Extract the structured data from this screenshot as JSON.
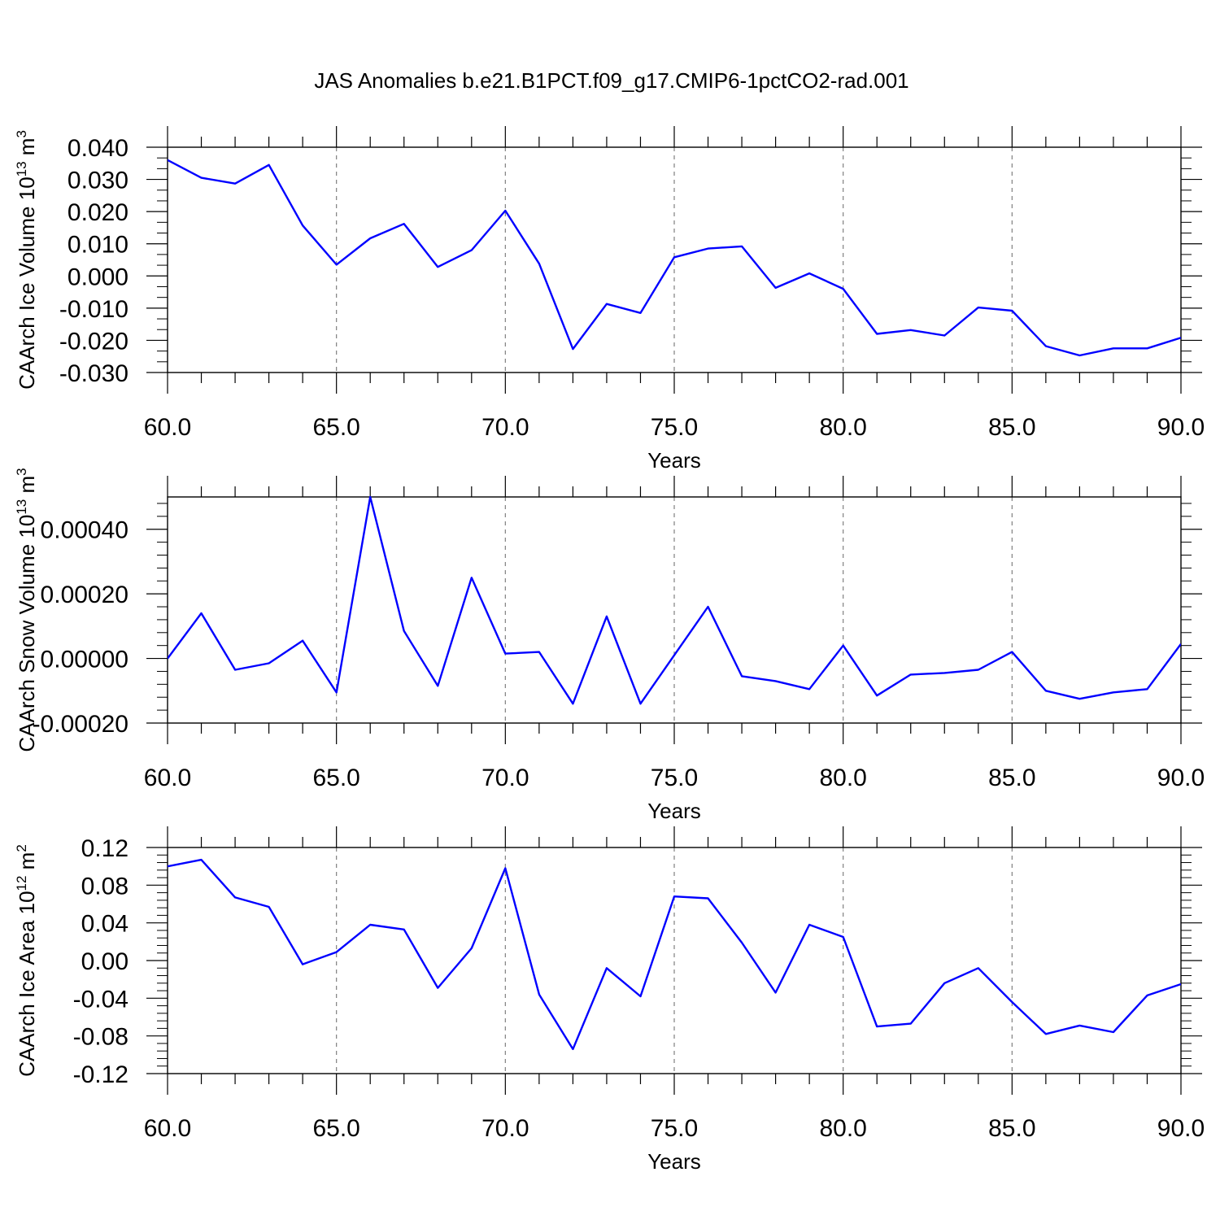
{
  "title": "JAS Anomalies b.e21.B1PCT.f09_g17.CMIP6-1pctCO2-rad.001",
  "colors": {
    "line": "#0000ff",
    "axis": "#000000",
    "grid": "#808080"
  },
  "chart_data": [
    {
      "type": "line",
      "xlabel": "Years",
      "ylabel": {
        "text": "CAArch Ice Volume 10",
        "sup": "13",
        "unit": " m",
        "unit_sup": "3"
      },
      "xlim": [
        60,
        90
      ],
      "ylim": [
        -0.03,
        0.04
      ],
      "x_ticks": [
        "60.0",
        "65.0",
        "70.0",
        "75.0",
        "80.0",
        "85.0",
        "90.0"
      ],
      "y_ticks": [
        "0.040",
        "0.030",
        "0.020",
        "0.010",
        "0.000",
        "-0.010",
        "-0.020",
        "-0.030"
      ],
      "y_tick_values": [
        0.04,
        0.03,
        0.02,
        0.01,
        0.0,
        -0.01,
        -0.02,
        -0.03
      ],
      "grid": "vertical-dashed",
      "x": [
        60,
        61,
        62,
        63,
        64,
        65,
        66,
        67,
        68,
        69,
        70,
        71,
        72,
        73,
        74,
        75,
        76,
        77,
        78,
        79,
        80,
        81,
        82,
        83,
        84,
        85,
        86,
        87,
        88,
        89,
        90
      ],
      "values": [
        0.036,
        0.0305,
        0.0287,
        0.0345,
        0.0157,
        0.0035,
        0.0117,
        0.0162,
        0.0028,
        0.008,
        0.0203,
        0.0038,
        -0.0227,
        -0.0087,
        -0.0115,
        0.0058,
        0.0085,
        0.0092,
        -0.0037,
        0.0008,
        -0.004,
        -0.018,
        -0.0168,
        -0.0185,
        -0.0098,
        -0.0108,
        -0.0218,
        -0.0247,
        -0.0225,
        -0.0225,
        -0.0192
      ]
    },
    {
      "type": "line",
      "xlabel": "Years",
      "ylabel": {
        "text": "CAArch Snow Volume 10",
        "sup": "13",
        "unit": " m",
        "unit_sup": "3"
      },
      "xlim": [
        60,
        90
      ],
      "ylim": [
        -0.0002,
        0.0005
      ],
      "x_ticks": [
        "60.0",
        "65.0",
        "70.0",
        "75.0",
        "80.0",
        "85.0",
        "90.0"
      ],
      "y_ticks": [
        "0.00040",
        "0.00020",
        "0.00000",
        "-0.00020"
      ],
      "y_tick_values": [
        0.0004,
        0.0002,
        0.0,
        -0.0002
      ],
      "grid": "vertical-dashed",
      "x": [
        60,
        61,
        62,
        63,
        64,
        65,
        66,
        67,
        68,
        69,
        70,
        71,
        72,
        73,
        74,
        75,
        76,
        77,
        78,
        79,
        80,
        81,
        82,
        83,
        84,
        85,
        86,
        87,
        88,
        89,
        90
      ],
      "values": [
        0.0,
        0.00014,
        -3.5e-05,
        -1.5e-05,
        5.5e-05,
        -0.000105,
        0.0005,
        8.5e-05,
        -8.5e-05,
        0.00025,
        1.5e-05,
        2e-05,
        -0.00014,
        0.00013,
        -0.00014,
        1e-05,
        0.00016,
        -5.5e-05,
        -7e-05,
        -9.5e-05,
        4e-05,
        -0.000115,
        -5e-05,
        -4.5e-05,
        -3.5e-05,
        2e-05,
        -0.0001,
        -0.000125,
        -0.000105,
        -9.5e-05,
        4.5e-05
      ]
    },
    {
      "type": "line",
      "xlabel": "Years",
      "ylabel": {
        "text": "CAArch Ice Area 10",
        "sup": "12",
        "unit": " m",
        "unit_sup": "2"
      },
      "xlim": [
        60,
        90
      ],
      "ylim": [
        -0.12,
        0.12
      ],
      "x_ticks": [
        "60.0",
        "65.0",
        "70.0",
        "75.0",
        "80.0",
        "85.0",
        "90.0"
      ],
      "y_ticks": [
        "0.12",
        "0.08",
        "0.04",
        "0.00",
        "-0.04",
        "-0.08",
        "-0.12"
      ],
      "y_tick_values": [
        0.12,
        0.08,
        0.04,
        0.0,
        -0.04,
        -0.08,
        -0.12
      ],
      "grid": "vertical-dashed",
      "x": [
        60,
        61,
        62,
        63,
        64,
        65,
        66,
        67,
        68,
        69,
        70,
        71,
        72,
        73,
        74,
        75,
        76,
        77,
        78,
        79,
        80,
        81,
        82,
        83,
        84,
        85,
        86,
        87,
        88,
        89,
        90
      ],
      "values": [
        0.1,
        0.107,
        0.067,
        0.057,
        -0.004,
        0.009,
        0.038,
        0.033,
        -0.029,
        0.013,
        0.098,
        -0.036,
        -0.094,
        -0.008,
        -0.038,
        0.068,
        0.066,
        0.019,
        -0.034,
        0.038,
        0.025,
        -0.07,
        -0.067,
        -0.024,
        -0.008,
        -0.044,
        -0.078,
        -0.069,
        -0.076,
        -0.037,
        -0.025
      ]
    }
  ]
}
